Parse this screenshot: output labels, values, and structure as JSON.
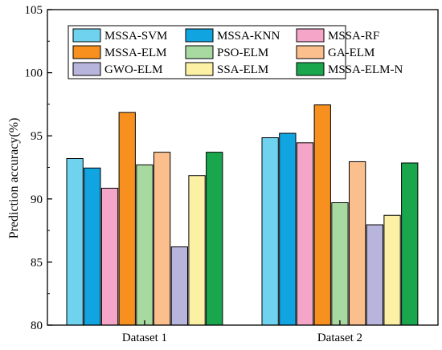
{
  "chart_data": {
    "type": "bar",
    "ylabel": "Prediction accuracy(%)",
    "xlabel": "",
    "ylim": [
      80,
      105
    ],
    "yticks": [
      80,
      85,
      90,
      95,
      100,
      105
    ],
    "categories": [
      "Dataset 1",
      "Dataset 2"
    ],
    "grid": false,
    "legend_position": "top",
    "series": [
      {
        "name": "MSSA-SVM",
        "color": "#6fd3f0",
        "values": [
          93.2,
          94.85
        ]
      },
      {
        "name": "MSSA-KNN",
        "color": "#10a4e0",
        "values": [
          92.45,
          95.2
        ]
      },
      {
        "name": "MSSA-RF",
        "color": "#f5a6c8",
        "values": [
          90.85,
          94.45
        ]
      },
      {
        "name": "MSSA-ELM",
        "color": "#f7901e",
        "values": [
          96.85,
          97.45
        ]
      },
      {
        "name": "PSO-ELM",
        "color": "#a8d9a0",
        "values": [
          92.7,
          89.7
        ]
      },
      {
        "name": "GA-ELM",
        "color": "#fbbf8e",
        "values": [
          93.7,
          92.95
        ]
      },
      {
        "name": "GWO-ELM",
        "color": "#b8b5dc",
        "values": [
          86.2,
          87.95
        ]
      },
      {
        "name": "SSA-ELM",
        "color": "#fcf0a5",
        "values": [
          91.85,
          88.7
        ]
      },
      {
        "name": "MSSA-ELM-N",
        "color": "#19a64d",
        "values": [
          93.7,
          92.85
        ]
      }
    ]
  }
}
